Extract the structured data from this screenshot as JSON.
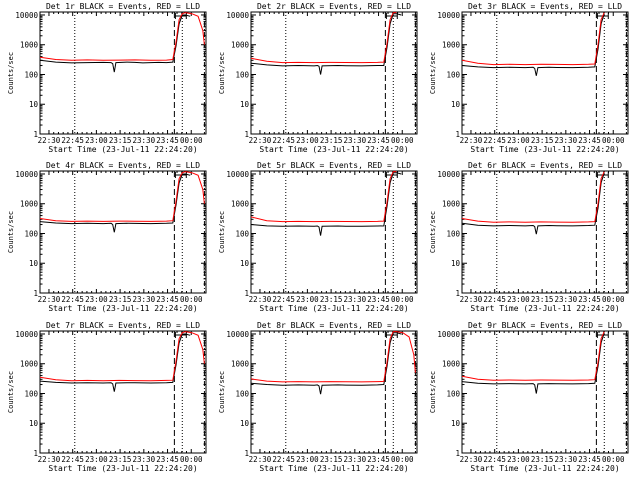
{
  "x_axis_title": "Start Time (23-Jul-11 22:24:20)",
  "y_axis_title": "Counts/sec",
  "x_tick_labels": [
    "22:30",
    "22:45",
    "23:00",
    "23:15",
    "23:30",
    "23:45",
    "00:00"
  ],
  "y_tick_labels": [
    "1",
    "10",
    "100",
    "1000",
    "10000"
  ],
  "colors": {
    "events": "#000000",
    "lld": "#ff0000",
    "axes": "#000000",
    "background": "#ffffff"
  },
  "chart_data": [
    {
      "type": "line",
      "title": "Det 1r BLACK = Events, RED = LLD",
      "x_range_min": [
        0,
        105
      ],
      "ylim_log10": [
        0,
        4.1
      ],
      "markers_min": [
        22,
        85,
        90,
        104
      ],
      "series": [
        {
          "name": "Events",
          "color": "#000000",
          "x": [
            0,
            10,
            20,
            30,
            40,
            45,
            46,
            47,
            48,
            55,
            60,
            65,
            70,
            75,
            80,
            84,
            86,
            88,
            90,
            92,
            95
          ],
          "y": [
            300,
            260,
            245,
            250,
            255,
            250,
            230,
            120,
            250,
            260,
            255,
            245,
            250,
            255,
            250,
            260,
            900,
            5000,
            10000,
            10000,
            9000
          ]
        },
        {
          "name": "LLD",
          "color": "#ff0000",
          "x": [
            0,
            10,
            20,
            30,
            40,
            50,
            60,
            70,
            80,
            84,
            86,
            88,
            90,
            92,
            96,
            100,
            103,
            104
          ],
          "y": [
            380,
            320,
            300,
            310,
            300,
            305,
            310,
            300,
            305,
            320,
            1200,
            7000,
            11000,
            12000,
            11000,
            9000,
            3000,
            1000
          ]
        }
      ]
    },
    {
      "type": "line",
      "title": "Det 2r BLACK = Events, RED = LLD",
      "x_range_min": [
        0,
        105
      ],
      "ylim_log10": [
        0,
        4.1
      ],
      "markers_min": [
        22,
        85,
        90,
        104
      ],
      "series": [
        {
          "name": "Events",
          "color": "#000000",
          "x": [
            0,
            10,
            20,
            30,
            40,
            42,
            43,
            44,
            45,
            55,
            60,
            70,
            80,
            84,
            86,
            88,
            90,
            92,
            95
          ],
          "y": [
            240,
            210,
            195,
            200,
            195,
            200,
            190,
            100,
            195,
            200,
            198,
            195,
            200,
            200,
            800,
            5000,
            11000,
            11000,
            10000
          ]
        },
        {
          "name": "LLD",
          "color": "#ff0000",
          "x": [
            0,
            10,
            20,
            30,
            40,
            50,
            60,
            70,
            80,
            84,
            86,
            88,
            90,
            92
          ],
          "y": [
            350,
            280,
            250,
            255,
            250,
            255,
            252,
            250,
            255,
            260,
            1100,
            7000,
            12000,
            12000
          ]
        }
      ]
    },
    {
      "type": "line",
      "title": "Det 3r BLACK = Events, RED = LLD",
      "x_range_min": [
        0,
        105
      ],
      "ylim_log10": [
        0,
        4.1
      ],
      "markers_min": [
        22,
        85,
        90,
        104
      ],
      "series": [
        {
          "name": "Events",
          "color": "#000000",
          "x": [
            0,
            10,
            20,
            30,
            40,
            45,
            46,
            47,
            48,
            55,
            60,
            70,
            80,
            84,
            86,
            88,
            90
          ],
          "y": [
            200,
            180,
            170,
            175,
            170,
            175,
            160,
            90,
            170,
            175,
            172,
            170,
            175,
            180,
            700,
            5000,
            11000
          ]
        },
        {
          "name": "LLD",
          "color": "#ff0000",
          "x": [
            0,
            10,
            20,
            30,
            40,
            50,
            60,
            70,
            80,
            84,
            86,
            88,
            90
          ],
          "y": [
            300,
            240,
            215,
            220,
            215,
            220,
            218,
            215,
            220,
            225,
            1000,
            7000,
            12000
          ]
        }
      ]
    },
    {
      "type": "line",
      "title": "Det 4r BLACK = Events, RED = LLD",
      "x_range_min": [
        0,
        105
      ],
      "ylim_log10": [
        0,
        4.1
      ],
      "markers_min": [
        22,
        85,
        90,
        104
      ],
      "series": [
        {
          "name": "Events",
          "color": "#000000",
          "x": [
            0,
            10,
            20,
            30,
            40,
            45,
            46,
            47,
            48,
            55,
            60,
            70,
            80,
            84,
            86,
            88,
            90,
            92,
            95
          ],
          "y": [
            250,
            225,
            215,
            220,
            215,
            220,
            200,
            110,
            215,
            220,
            218,
            215,
            220,
            225,
            900,
            5000,
            10000,
            10000,
            9000
          ]
        },
        {
          "name": "LLD",
          "color": "#ff0000",
          "x": [
            0,
            10,
            20,
            30,
            40,
            50,
            60,
            70,
            80,
            84,
            86,
            88,
            90,
            92,
            96,
            100,
            103,
            104
          ],
          "y": [
            320,
            270,
            255,
            260,
            255,
            260,
            258,
            255,
            260,
            270,
            1200,
            7000,
            11000,
            12000,
            11000,
            9000,
            3000,
            1000
          ]
        }
      ]
    },
    {
      "type": "line",
      "title": "Det 5r BLACK = Events, RED = LLD",
      "x_range_min": [
        0,
        105
      ],
      "ylim_log10": [
        0,
        4.1
      ],
      "markers_min": [
        22,
        85,
        90,
        104
      ],
      "series": [
        {
          "name": "Events",
          "color": "#000000",
          "x": [
            0,
            10,
            20,
            30,
            40,
            42,
            43,
            44,
            45,
            55,
            60,
            70,
            80,
            84,
            86,
            88,
            90,
            92,
            95
          ],
          "y": [
            200,
            180,
            175,
            178,
            175,
            178,
            165,
            85,
            175,
            178,
            176,
            175,
            178,
            180,
            800,
            5000,
            11000,
            11000,
            10000
          ]
        },
        {
          "name": "LLD",
          "color": "#ff0000",
          "x": [
            0,
            10,
            20,
            30,
            40,
            50,
            60,
            70,
            80,
            84,
            86,
            88,
            90,
            92
          ],
          "y": [
            360,
            270,
            250,
            255,
            250,
            255,
            252,
            250,
            255,
            260,
            1100,
            7000,
            12000,
            12000
          ]
        }
      ]
    },
    {
      "type": "line",
      "title": "Det 6r BLACK = Events, RED = LLD",
      "x_range_min": [
        0,
        105
      ],
      "ylim_log10": [
        0,
        4.1
      ],
      "markers_min": [
        22,
        85,
        90,
        104
      ],
      "series": [
        {
          "name": "Events",
          "color": "#000000",
          "x": [
            0,
            10,
            20,
            30,
            40,
            45,
            46,
            47,
            48,
            55,
            60,
            70,
            80,
            84,
            86,
            88,
            90
          ],
          "y": [
            220,
            190,
            180,
            185,
            180,
            185,
            170,
            95,
            180,
            185,
            182,
            180,
            185,
            190,
            700,
            5000,
            11000
          ]
        },
        {
          "name": "LLD",
          "color": "#ff0000",
          "x": [
            0,
            10,
            20,
            30,
            40,
            50,
            60,
            70,
            80,
            84,
            86,
            88,
            90
          ],
          "y": [
            320,
            260,
            240,
            245,
            240,
            245,
            242,
            240,
            245,
            250,
            1000,
            7000,
            12000
          ]
        }
      ]
    },
    {
      "type": "line",
      "title": "Det 7r BLACK = Events, RED = LLD",
      "x_range_min": [
        0,
        105
      ],
      "ylim_log10": [
        0,
        4.1
      ],
      "markers_min": [
        22,
        85,
        90,
        104
      ],
      "series": [
        {
          "name": "Events",
          "color": "#000000",
          "x": [
            0,
            10,
            20,
            30,
            40,
            45,
            46,
            47,
            48,
            55,
            60,
            70,
            80,
            84,
            86,
            88,
            90,
            92,
            95
          ],
          "y": [
            260,
            235,
            225,
            230,
            225,
            230,
            210,
            115,
            225,
            230,
            228,
            225,
            230,
            235,
            900,
            5000,
            10000,
            10000,
            9000
          ]
        },
        {
          "name": "LLD",
          "color": "#ff0000",
          "x": [
            0,
            10,
            20,
            30,
            40,
            50,
            60,
            70,
            80,
            84,
            86,
            88,
            90,
            92,
            96,
            100,
            103,
            104
          ],
          "y": [
            350,
            290,
            270,
            275,
            270,
            275,
            272,
            270,
            275,
            280,
            1200,
            7000,
            11000,
            12000,
            11000,
            9000,
            3000,
            1000
          ]
        }
      ]
    },
    {
      "type": "line",
      "title": "Det 8r BLACK = Events, RED = LLD",
      "x_range_min": [
        0,
        105
      ],
      "ylim_log10": [
        0,
        4.1
      ],
      "markers_min": [
        22,
        85,
        90,
        104
      ],
      "series": [
        {
          "name": "Events",
          "color": "#000000",
          "x": [
            0,
            10,
            20,
            30,
            40,
            42,
            43,
            44,
            45,
            55,
            60,
            70,
            80,
            84,
            86,
            88,
            90,
            92,
            95
          ],
          "y": [
            220,
            200,
            190,
            195,
            190,
            195,
            180,
            95,
            190,
            195,
            192,
            190,
            195,
            200,
            800,
            5000,
            11000,
            11000,
            10000
          ]
        },
        {
          "name": "LLD",
          "color": "#ff0000",
          "x": [
            0,
            10,
            20,
            30,
            40,
            50,
            60,
            70,
            80,
            84,
            86,
            88,
            90,
            92,
            96,
            100,
            103,
            104
          ],
          "y": [
            310,
            260,
            245,
            250,
            245,
            250,
            248,
            245,
            250,
            255,
            1100,
            7000,
            12000,
            12000,
            11000,
            8000,
            2000,
            500
          ]
        }
      ]
    },
    {
      "type": "line",
      "title": "Det 9r BLACK = Events, RED = LLD",
      "x_range_min": [
        0,
        105
      ],
      "ylim_log10": [
        0,
        4.1
      ],
      "markers_min": [
        22,
        85,
        90,
        104
      ],
      "series": [
        {
          "name": "Events",
          "color": "#000000",
          "x": [
            0,
            10,
            20,
            30,
            40,
            45,
            46,
            47,
            48,
            55,
            60,
            70,
            80,
            84,
            86,
            88,
            90
          ],
          "y": [
            250,
            220,
            210,
            215,
            210,
            215,
            195,
            100,
            210,
            215,
            212,
            210,
            215,
            220,
            800,
            5000,
            11000
          ]
        },
        {
          "name": "LLD",
          "color": "#ff0000",
          "x": [
            0,
            10,
            20,
            30,
            40,
            50,
            60,
            70,
            80,
            84,
            86,
            88,
            90
          ],
          "y": [
            380,
            300,
            280,
            285,
            280,
            285,
            282,
            280,
            285,
            290,
            1100,
            7000,
            12000
          ]
        }
      ]
    }
  ]
}
